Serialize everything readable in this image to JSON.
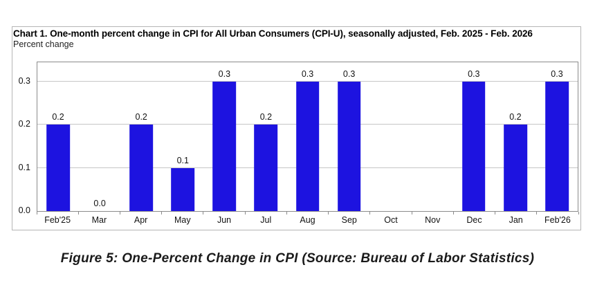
{
  "chart": {
    "title": "Chart 1. One-month percent change in CPI for All Urban Consumers (CPI-U), seasonally adjusted, Feb. 2025 - Feb. 2026",
    "subtitle": "Percent change"
  },
  "chart_data": {
    "type": "bar",
    "title": "Chart 1. One-month percent change in CPI for All Urban Consumers (CPI-U), seasonally adjusted, Feb. 2025 - Feb. 2026",
    "ylabel": "Percent change",
    "xlabel": "",
    "categories": [
      "Feb'25",
      "Mar",
      "Apr",
      "May",
      "Jun",
      "Jul",
      "Aug",
      "Sep",
      "Oct",
      "Nov",
      "Dec",
      "Jan",
      "Feb'26"
    ],
    "values": [
      0.2,
      0.0,
      0.2,
      0.1,
      0.3,
      0.2,
      0.3,
      0.3,
      null,
      null,
      0.3,
      0.2,
      0.3
    ],
    "bar_labels": [
      "0.2",
      "0.0",
      "0.2",
      "0.1",
      "0.3",
      "0.2",
      "0.3",
      "0.3",
      "",
      "",
      "0.3",
      "0.2",
      "0.3"
    ],
    "missing_categories": [
      "Oct",
      "Nov"
    ],
    "yticks": [
      0.0,
      0.1,
      0.2,
      0.3
    ],
    "ytick_labels": [
      "0.0",
      "0.1",
      "0.2",
      "0.3"
    ],
    "ylim": [
      0,
      0.345
    ],
    "grid": true,
    "legend_position": "none",
    "bar_color": "#1d13e0"
  },
  "colors": {
    "bar": "#1d13e0",
    "plot_border": "#8a8a8a",
    "gridline": "#c6c6c6",
    "frame_border": "#b5b5b5",
    "text": "#000000"
  },
  "document": {
    "caption": "Figure 5: One-Percent Change in CPI (Source: Bureau of Labor Statistics)"
  }
}
